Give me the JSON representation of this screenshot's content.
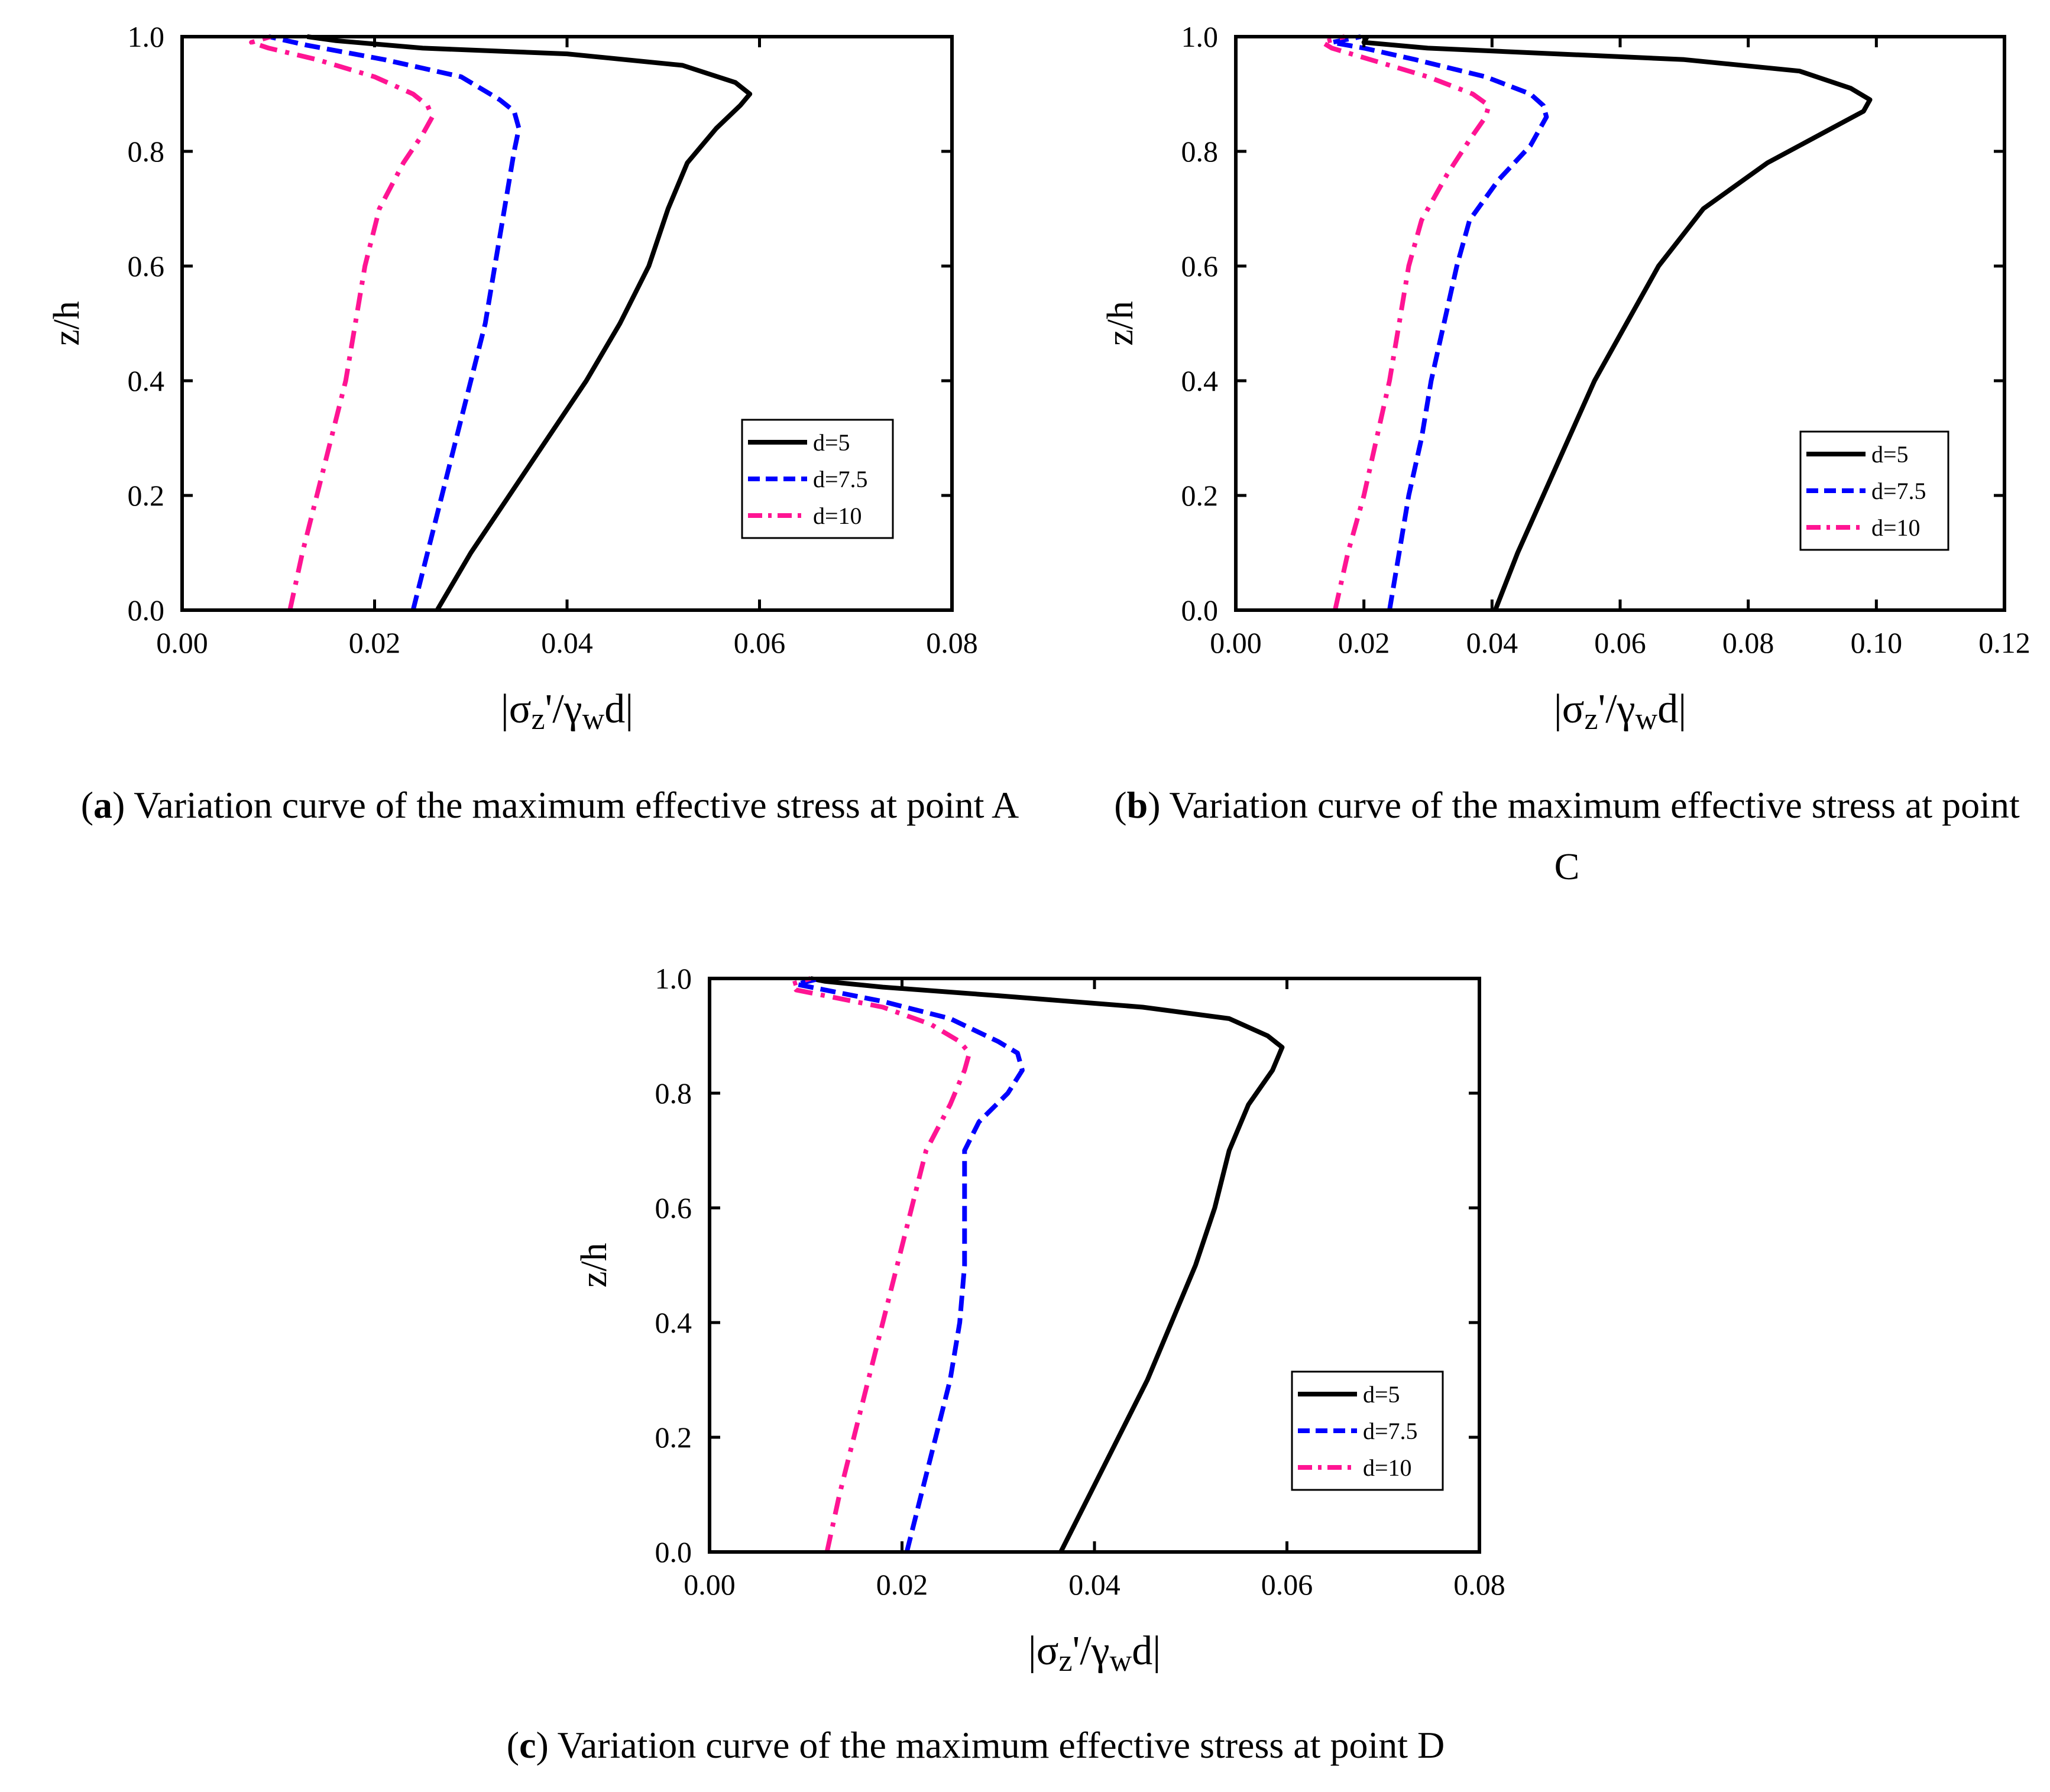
{
  "chart_data": [
    {
      "id": "a",
      "type": "line",
      "xlabel": "|σz'/γwd|",
      "ylabel": "z/h",
      "xlim": [
        0,
        0.08
      ],
      "ylim": [
        0,
        1.0
      ],
      "xticks": [
        "0.00",
        "0.02",
        "0.04",
        "0.06",
        "0.08"
      ],
      "yticks": [
        "0.0",
        "0.2",
        "0.4",
        "0.6",
        "0.8",
        "1.0"
      ],
      "legend_position": "right",
      "caption": {
        "letter": "a",
        "text": "Variation curve of the maximum effective stress at point A"
      },
      "series": [
        {
          "name": "d=5",
          "color": "#000000",
          "style": "solid",
          "points": [
            [
              0.0265,
              0
            ],
            [
              0.03,
              0.1
            ],
            [
              0.034,
              0.2
            ],
            [
              0.038,
              0.3
            ],
            [
              0.042,
              0.4
            ],
            [
              0.0455,
              0.5
            ],
            [
              0.0485,
              0.6
            ],
            [
              0.0505,
              0.7
            ],
            [
              0.0525,
              0.78
            ],
            [
              0.0555,
              0.84
            ],
            [
              0.058,
              0.88
            ],
            [
              0.059,
              0.9
            ],
            [
              0.0575,
              0.92
            ],
            [
              0.052,
              0.95
            ],
            [
              0.04,
              0.97
            ],
            [
              0.025,
              0.98
            ],
            [
              0.016,
              0.993
            ],
            [
              0.013,
              1.0
            ]
          ]
        },
        {
          "name": "d=7.5",
          "color": "#0000ff",
          "style": "dash",
          "points": [
            [
              0.024,
              0
            ],
            [
              0.0255,
              0.1
            ],
            [
              0.027,
              0.2
            ],
            [
              0.0285,
              0.3
            ],
            [
              0.03,
              0.4
            ],
            [
              0.0315,
              0.5
            ],
            [
              0.0325,
              0.6
            ],
            [
              0.0335,
              0.7
            ],
            [
              0.0345,
              0.8
            ],
            [
              0.035,
              0.84
            ],
            [
              0.0345,
              0.87
            ],
            [
              0.033,
              0.89
            ],
            [
              0.029,
              0.93
            ],
            [
              0.021,
              0.96
            ],
            [
              0.013,
              0.985
            ],
            [
              0.009,
              1.0
            ]
          ]
        },
        {
          "name": "d=10",
          "color": "#ff1493",
          "style": "dashdot",
          "points": [
            [
              0.0112,
              0
            ],
            [
              0.0125,
              0.1
            ],
            [
              0.014,
              0.2
            ],
            [
              0.0155,
              0.3
            ],
            [
              0.017,
              0.4
            ],
            [
              0.018,
              0.5
            ],
            [
              0.019,
              0.6
            ],
            [
              0.0205,
              0.7
            ],
            [
              0.023,
              0.78
            ],
            [
              0.025,
              0.83
            ],
            [
              0.026,
              0.86
            ],
            [
              0.0255,
              0.88
            ],
            [
              0.024,
              0.9
            ],
            [
              0.02,
              0.93
            ],
            [
              0.014,
              0.96
            ],
            [
              0.009,
              0.98
            ],
            [
              0.0072,
              0.99
            ],
            [
              0.0092,
              1.0
            ]
          ]
        }
      ]
    },
    {
      "id": "b",
      "type": "line",
      "xlabel": "|σz'/γwd|",
      "ylabel": "z/h",
      "xlim": [
        0,
        0.12
      ],
      "ylim": [
        0,
        1.0
      ],
      "xticks": [
        "0.00",
        "0.02",
        "0.04",
        "0.06",
        "0.08",
        "0.10",
        "0.12"
      ],
      "yticks": [
        "0.0",
        "0.2",
        "0.4",
        "0.6",
        "0.8",
        "1.0"
      ],
      "legend_position": "right",
      "caption": {
        "letter": "b",
        "text": "Variation curve of the maximum effective stress at point C"
      },
      "series": [
        {
          "name": "d=5",
          "color": "#000000",
          "style": "solid",
          "points": [
            [
              0.0405,
              0
            ],
            [
              0.044,
              0.1
            ],
            [
              0.048,
              0.2
            ],
            [
              0.052,
              0.3
            ],
            [
              0.056,
              0.4
            ],
            [
              0.061,
              0.5
            ],
            [
              0.066,
              0.6
            ],
            [
              0.073,
              0.7
            ],
            [
              0.083,
              0.78
            ],
            [
              0.093,
              0.84
            ],
            [
              0.098,
              0.87
            ],
            [
              0.099,
              0.89
            ],
            [
              0.096,
              0.91
            ],
            [
              0.088,
              0.94
            ],
            [
              0.07,
              0.96
            ],
            [
              0.05,
              0.97
            ],
            [
              0.03,
              0.98
            ],
            [
              0.02,
              0.99
            ],
            [
              0.0205,
              1.0
            ]
          ]
        },
        {
          "name": "d=7.5",
          "color": "#0000ff",
          "style": "dash",
          "points": [
            [
              0.024,
              0
            ],
            [
              0.0255,
              0.1
            ],
            [
              0.027,
              0.2
            ],
            [
              0.029,
              0.3
            ],
            [
              0.0305,
              0.4
            ],
            [
              0.0325,
              0.5
            ],
            [
              0.0345,
              0.6
            ],
            [
              0.0365,
              0.68
            ],
            [
              0.041,
              0.75
            ],
            [
              0.046,
              0.81
            ],
            [
              0.0485,
              0.86
            ],
            [
              0.048,
              0.88
            ],
            [
              0.046,
              0.9
            ],
            [
              0.039,
              0.93
            ],
            [
              0.028,
              0.96
            ],
            [
              0.02,
              0.98
            ],
            [
              0.015,
              0.99
            ],
            [
              0.0195,
              1.0
            ]
          ]
        },
        {
          "name": "d=10",
          "color": "#ff1493",
          "style": "dashdot",
          "points": [
            [
              0.0155,
              0
            ],
            [
              0.0175,
              0.1
            ],
            [
              0.02,
              0.2
            ],
            [
              0.022,
              0.3
            ],
            [
              0.024,
              0.4
            ],
            [
              0.0255,
              0.5
            ],
            [
              0.027,
              0.6
            ],
            [
              0.029,
              0.68
            ],
            [
              0.033,
              0.76
            ],
            [
              0.0365,
              0.82
            ],
            [
              0.039,
              0.86
            ],
            [
              0.0395,
              0.88
            ],
            [
              0.037,
              0.9
            ],
            [
              0.03,
              0.93
            ],
            [
              0.021,
              0.96
            ],
            [
              0.015,
              0.98
            ],
            [
              0.0135,
              0.99
            ],
            [
              0.017,
              1.0
            ]
          ]
        }
      ]
    },
    {
      "id": "c",
      "type": "line",
      "xlabel": "|σz'/γwd|",
      "ylabel": "z/h",
      "xlim": [
        0,
        0.08
      ],
      "ylim": [
        0,
        1.0
      ],
      "xticks": [
        "0.00",
        "0.02",
        "0.04",
        "0.06",
        "0.08"
      ],
      "yticks": [
        "0.0",
        "0.2",
        "0.4",
        "0.6",
        "0.8",
        "1.0"
      ],
      "legend_position": "right",
      "caption": {
        "letter": "c",
        "text": "Variation curve of the maximum effective stress at point D"
      },
      "series": [
        {
          "name": "d=5",
          "color": "#000000",
          "style": "solid",
          "points": [
            [
              0.0365,
              0
            ],
            [
              0.0395,
              0.1
            ],
            [
              0.0425,
              0.2
            ],
            [
              0.0455,
              0.3
            ],
            [
              0.048,
              0.4
            ],
            [
              0.0505,
              0.5
            ],
            [
              0.0525,
              0.6
            ],
            [
              0.054,
              0.7
            ],
            [
              0.056,
              0.78
            ],
            [
              0.0585,
              0.84
            ],
            [
              0.0595,
              0.88
            ],
            [
              0.058,
              0.9
            ],
            [
              0.054,
              0.93
            ],
            [
              0.045,
              0.95
            ],
            [
              0.03,
              0.97
            ],
            [
              0.018,
              0.985
            ],
            [
              0.012,
              0.995
            ],
            [
              0.0105,
              1.0
            ]
          ]
        },
        {
          "name": "d=7.5",
          "color": "#0000ff",
          "style": "dash",
          "points": [
            [
              0.0205,
              0
            ],
            [
              0.022,
              0.1
            ],
            [
              0.0235,
              0.2
            ],
            [
              0.025,
              0.3
            ],
            [
              0.026,
              0.4
            ],
            [
              0.0265,
              0.5
            ],
            [
              0.0265,
              0.6
            ],
            [
              0.0265,
              0.7
            ],
            [
              0.028,
              0.75
            ],
            [
              0.031,
              0.8
            ],
            [
              0.0325,
              0.84
            ],
            [
              0.032,
              0.87
            ],
            [
              0.03,
              0.89
            ],
            [
              0.025,
              0.93
            ],
            [
              0.018,
              0.96
            ],
            [
              0.012,
              0.98
            ],
            [
              0.009,
              0.99
            ],
            [
              0.0115,
              1.0
            ]
          ]
        },
        {
          "name": "d=10",
          "color": "#ff1493",
          "style": "dashdot",
          "points": [
            [
              0.0122,
              0
            ],
            [
              0.0135,
              0.1
            ],
            [
              0.015,
              0.2
            ],
            [
              0.0165,
              0.3
            ],
            [
              0.018,
              0.4
            ],
            [
              0.0195,
              0.5
            ],
            [
              0.021,
              0.6
            ],
            [
              0.0225,
              0.7
            ],
            [
              0.025,
              0.78
            ],
            [
              0.0265,
              0.84
            ],
            [
              0.027,
              0.87
            ],
            [
              0.026,
              0.89
            ],
            [
              0.023,
              0.92
            ],
            [
              0.018,
              0.95
            ],
            [
              0.012,
              0.97
            ],
            [
              0.009,
              0.98
            ],
            [
              0.0085,
              0.99
            ],
            [
              0.0105,
              1.0
            ]
          ]
        }
      ]
    }
  ]
}
